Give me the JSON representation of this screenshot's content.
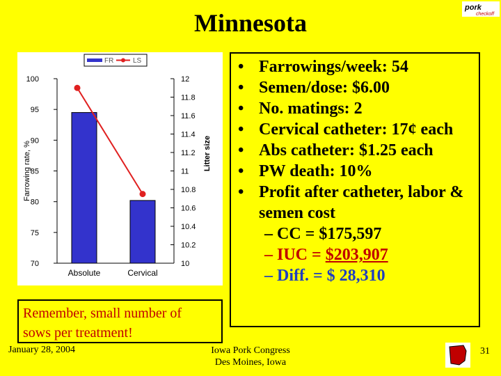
{
  "slide": {
    "title": "Minnesota",
    "logo_text": "pork",
    "logo_sub": "checkoff"
  },
  "bullets": [
    "Farrowings/week: 54",
    "Semen/dose: $6.00",
    "No. matings: 2",
    "Cervical catheter: 17¢ each",
    "Abs catheter: $1.25 each",
    "PW death: 10%",
    "Profit after catheter, labor & semen cost"
  ],
  "sub_bullets": {
    "cc": "CC = $175,597",
    "iuc_label": "IUC = ",
    "iuc_value": "$203,907",
    "diff": "Diff. = $ 28,310"
  },
  "note": {
    "line1": "Remember, small number of",
    "line2": "sows per treatment!"
  },
  "footer": {
    "date": "January 28, 2004",
    "event_line1": "Iowa Pork Congress",
    "event_line2": "Des Moines, Iowa",
    "page": "31"
  },
  "colors": {
    "background": "#ffff00",
    "bar": "#3333cc",
    "line": "#e02020",
    "accent_red": "#c00000",
    "accent_blue": "#1f3fbf"
  },
  "chart_data": {
    "type": "bar",
    "categories": [
      "Absolute",
      "Cervical"
    ],
    "series": [
      {
        "name": "FR",
        "type": "bar",
        "axis": "left",
        "values": [
          94.5,
          80.2
        ]
      },
      {
        "name": "LS",
        "type": "line",
        "axis": "right",
        "values": [
          11.9,
          10.75
        ]
      }
    ],
    "ylabel": "Farrowing rate, %",
    "y2label": "Litter size",
    "ylim": [
      70,
      100
    ],
    "y2lim": [
      10,
      12
    ],
    "yticks": [
      "70",
      "75",
      "80",
      "85",
      "90",
      "95",
      "100"
    ],
    "y2ticks": [
      "10",
      "10.2",
      "10.4",
      "10.6",
      "10.8",
      "11",
      "11.2",
      "11.4",
      "11.6",
      "11.8",
      "12"
    ],
    "legend": "top-left",
    "grid": false
  }
}
